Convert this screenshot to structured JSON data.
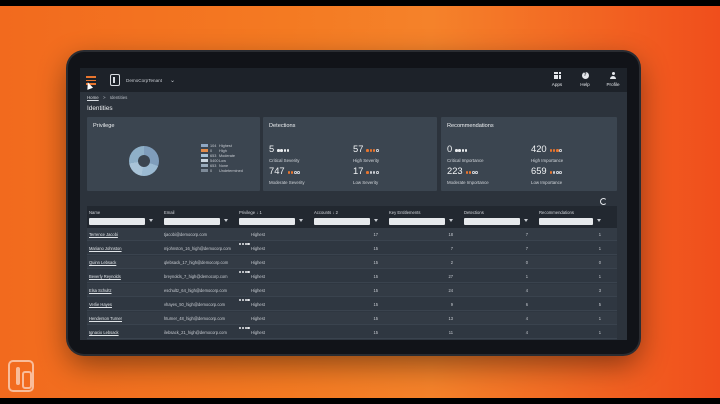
{
  "header": {
    "tenant": "DemoCorpTenant",
    "nav": [
      {
        "id": "apps",
        "label": "Apps",
        "icon": "apps-icon"
      },
      {
        "id": "help",
        "label": "Help",
        "icon": "help-icon"
      },
      {
        "id": "profile",
        "label": "Profile",
        "icon": "profile-icon"
      }
    ]
  },
  "breadcrumb": {
    "home": "Home",
    "sep": ">",
    "current": "Identities"
  },
  "page_title": "Identities",
  "privilege_card": {
    "title": "Privilege",
    "legend": [
      {
        "count": "104",
        "label": "Highest",
        "color": "#8ea7c4"
      },
      {
        "count": "0",
        "label": "High",
        "color": "#e08a4a"
      },
      {
        "count": "653",
        "label": "Moderate",
        "color": "#a6c0d6"
      },
      {
        "count": "5400",
        "label": "Low",
        "color": "#c9d4de"
      },
      {
        "count": "653",
        "label": "None",
        "color": "#98aabb"
      },
      {
        "count": "0",
        "label": "Undetermined",
        "color": "#7d8a98"
      }
    ]
  },
  "detections_card": {
    "title": "Detections",
    "metrics": [
      {
        "value": "5",
        "label": "Critical Severity",
        "dots": 4,
        "style": "white"
      },
      {
        "value": "57",
        "label": "High Severity",
        "dots": 3,
        "style": "orange"
      },
      {
        "value": "747",
        "label": "Moderate Severity",
        "dots": 2,
        "style": "orange"
      },
      {
        "value": "17",
        "label": "Low Severity",
        "dots": 1,
        "style": "orange"
      }
    ]
  },
  "recommendations_card": {
    "title": "Recommendations",
    "metrics": [
      {
        "value": "0",
        "label": "Critical Importance",
        "dots": 4,
        "style": "white"
      },
      {
        "value": "420",
        "label": "High Importance",
        "dots": 3,
        "style": "orange"
      },
      {
        "value": "223",
        "label": "Moderate Importance",
        "dots": 2,
        "style": "orange"
      },
      {
        "value": "659",
        "label": "Low Importance",
        "dots": 1,
        "style": "orange"
      }
    ]
  },
  "table": {
    "columns": [
      "Name",
      "Email",
      "Privilege",
      "Accounts",
      "Key Entitlements",
      "Detections",
      "Recommendations"
    ],
    "privilege_sort": "1",
    "accounts_sort": "2",
    "rows": [
      {
        "name": "Terrence Jacobi",
        "email": "tjacobi@democorp.com",
        "privilege": "Highest",
        "accounts": "17",
        "entitlements": "18",
        "detections": "7",
        "recommendations": "1"
      },
      {
        "name": "Mariano Johnston",
        "email": "mjohnston_16_high@democorp.com",
        "privilege": "Highest",
        "accounts": "15",
        "entitlements": "7",
        "detections": "7",
        "recommendations": "1"
      },
      {
        "name": "Quinn Lebsack",
        "email": "qlebsack_17_high@democorp.com",
        "privilege": "Highest",
        "accounts": "15",
        "entitlements": "2",
        "detections": "0",
        "recommendations": "0"
      },
      {
        "name": "Beverly Reynolds",
        "email": "breynolds_7_high@democorp.com",
        "privilege": "Highest",
        "accounts": "15",
        "entitlements": "27",
        "detections": "1",
        "recommendations": "1"
      },
      {
        "name": "Elsa Schultz",
        "email": "eschultz_64_high@democorp.com",
        "privilege": "Highest",
        "accounts": "15",
        "entitlements": "24",
        "detections": "4",
        "recommendations": "3"
      },
      {
        "name": "Verlie Hayes",
        "email": "vhayes_50_high@democorp.com",
        "privilege": "Highest",
        "accounts": "15",
        "entitlements": "9",
        "detections": "6",
        "recommendations": "5"
      },
      {
        "name": "Henderson Turner",
        "email": "hturner_48_high@democorp.com",
        "privilege": "Highest",
        "accounts": "15",
        "entitlements": "13",
        "detections": "4",
        "recommendations": "1"
      },
      {
        "name": "Ignacio Lebsack",
        "email": "ilebsack_21_high@democorp.com",
        "privilege": "Highest",
        "accounts": "15",
        "entitlements": "11",
        "detections": "4",
        "recommendations": "1"
      }
    ]
  }
}
